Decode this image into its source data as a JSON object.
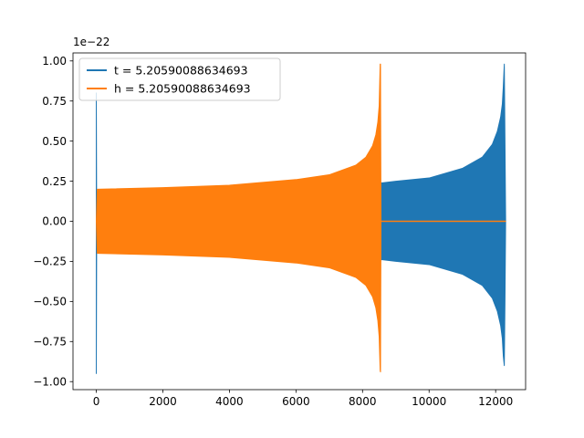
{
  "chart_data": {
    "type": "line",
    "title": "",
    "xlabel": "",
    "ylabel": "",
    "y_offset_label": "1e−22",
    "xlim": [
      -700,
      12900
    ],
    "ylim": [
      -1.05,
      1.05
    ],
    "x_ticks": [
      0,
      2000,
      4000,
      6000,
      8000,
      10000,
      12000
    ],
    "x_tick_labels": [
      "0",
      "2000",
      "4000",
      "6000",
      "8000",
      "10000",
      "12000"
    ],
    "y_ticks": [
      -1.0,
      -0.75,
      -0.5,
      -0.25,
      0.0,
      0.25,
      0.5,
      0.75,
      1.0
    ],
    "y_tick_labels": [
      "−1.00",
      "−0.75",
      "−0.50",
      "−0.25",
      "0.00",
      "0.25",
      "0.50",
      "0.75",
      "1.00"
    ],
    "grid": false,
    "legend_position": "top-left",
    "series": [
      {
        "name": "t = 5.20590088634693",
        "color": "#1f77b4",
        "envelope": {
          "x": [
            0,
            10,
            30,
            60,
            100,
            8480,
            8540,
            8560,
            8600,
            9000,
            10000,
            11000,
            11600,
            11900,
            12050,
            12150,
            12200,
            12230,
            12260,
            12280,
            12300
          ],
          "upper": [
            0.8,
            0.1,
            0.02,
            0.0,
            0.0,
            0.0,
            0.0,
            0.24,
            0.24,
            0.25,
            0.27,
            0.33,
            0.4,
            0.48,
            0.56,
            0.65,
            0.73,
            0.84,
            0.98,
            0.5,
            0.0
          ],
          "lower": [
            -0.95,
            -0.2,
            -0.05,
            0.0,
            0.0,
            0.0,
            0.0,
            -0.24,
            -0.24,
            -0.25,
            -0.27,
            -0.33,
            -0.4,
            -0.48,
            -0.56,
            -0.65,
            -0.73,
            -0.84,
            -0.9,
            -0.5,
            0.0
          ]
        }
      },
      {
        "name": "h = 5.20590088634693",
        "color": "#ff7f0e",
        "envelope": {
          "x": [
            0,
            30,
            2000,
            4000,
            6000,
            7000,
            7800,
            8100,
            8300,
            8400,
            8460,
            8500,
            8530,
            8540,
            8555,
            8570,
            12300
          ],
          "upper": [
            0.0,
            0.2,
            0.21,
            0.225,
            0.26,
            0.29,
            0.35,
            0.4,
            0.47,
            0.54,
            0.62,
            0.72,
            0.98,
            0.98,
            0.0,
            0.0,
            0.0
          ],
          "lower": [
            0.0,
            -0.2,
            -0.21,
            -0.225,
            -0.26,
            -0.29,
            -0.35,
            -0.4,
            -0.47,
            -0.54,
            -0.62,
            -0.72,
            -0.93,
            -0.94,
            0.0,
            0.0,
            0.0
          ]
        },
        "flat_line": {
          "x_start": 8555,
          "x_end": 12300,
          "value": 0.0
        }
      }
    ]
  }
}
